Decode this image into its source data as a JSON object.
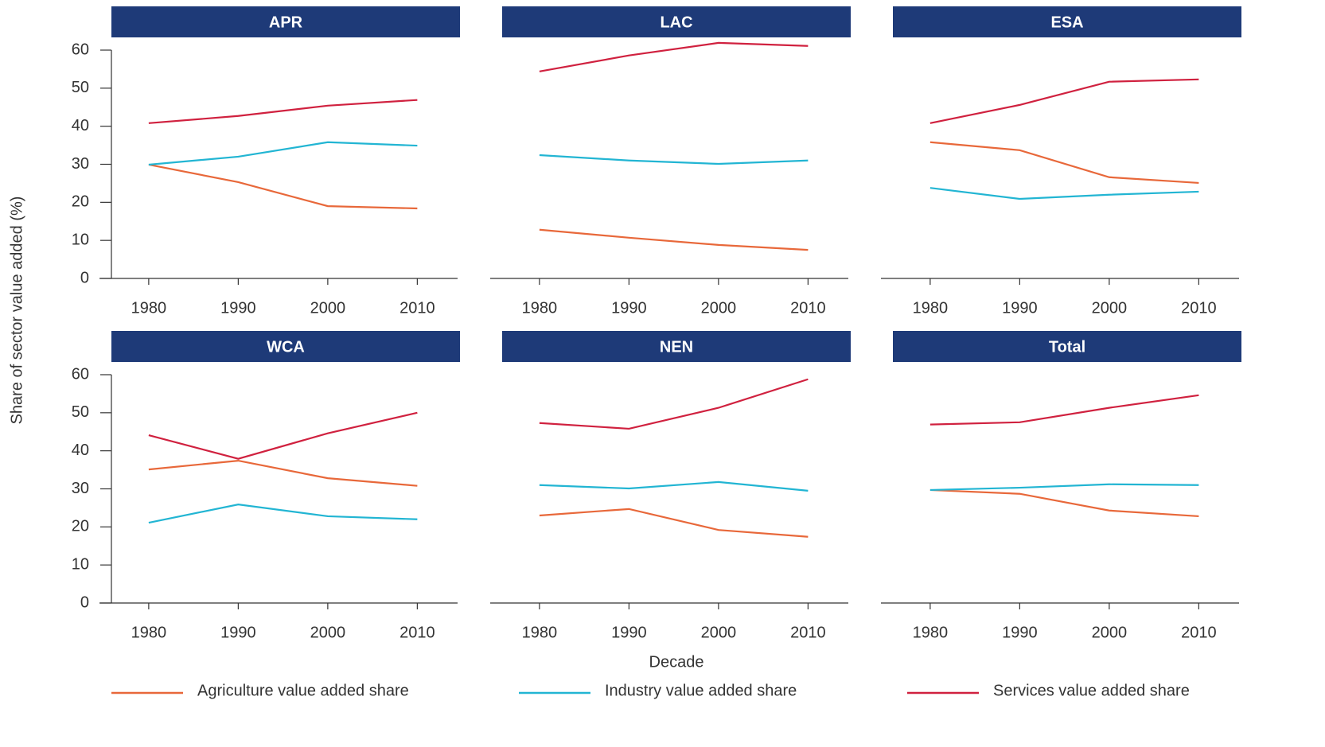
{
  "y_label": "Share of sector value added (%)",
  "x_label": "Decade",
  "chart_data": [
    {
      "type": "line",
      "title": "APR",
      "x": [
        1980,
        1990,
        2000,
        2010
      ],
      "xlim": [
        1974.5,
        2014.5
      ],
      "xticks": [
        1980,
        1990,
        2000,
        2010
      ],
      "ylim": [
        0,
        64
      ],
      "yticks": [
        0,
        10,
        20,
        30,
        40,
        50,
        60
      ],
      "series": [
        {
          "name": "Agriculture value added share",
          "color": "#e8683a",
          "values": [
            29.9,
            25.3,
            19.0,
            18.4
          ]
        },
        {
          "name": "Industry value added share",
          "color": "#22b5d3",
          "values": [
            29.9,
            32.0,
            35.8,
            34.9
          ]
        },
        {
          "name": "Services value added share",
          "color": "#d0213f",
          "values": [
            40.8,
            42.7,
            45.4,
            46.9
          ]
        }
      ]
    },
    {
      "type": "line",
      "title": "LAC",
      "x": [
        1980,
        1990,
        2000,
        2010
      ],
      "xlim": [
        1974.5,
        2014.5
      ],
      "xticks": [
        1980,
        1990,
        2000,
        2010
      ],
      "ylim": [
        0,
        64
      ],
      "series": [
        {
          "name": "Agriculture value added share",
          "color": "#e8683a",
          "values": [
            12.8,
            10.7,
            8.8,
            7.5
          ]
        },
        {
          "name": "Industry value added share",
          "color": "#22b5d3",
          "values": [
            32.4,
            31.0,
            30.1,
            31.0
          ]
        },
        {
          "name": "Services value added share",
          "color": "#d0213f",
          "values": [
            54.4,
            58.6,
            61.9,
            61.1
          ]
        }
      ]
    },
    {
      "type": "line",
      "title": "ESA",
      "x": [
        1980,
        1990,
        2000,
        2010
      ],
      "xlim": [
        1974.5,
        2014.5
      ],
      "xticks": [
        1980,
        1990,
        2000,
        2010
      ],
      "ylim": [
        0,
        64
      ],
      "series": [
        {
          "name": "Agriculture value added share",
          "color": "#e8683a",
          "values": [
            35.8,
            33.7,
            26.6,
            25.1
          ]
        },
        {
          "name": "Industry value added share",
          "color": "#22b5d3",
          "values": [
            23.8,
            20.9,
            22.0,
            22.8
          ]
        },
        {
          "name": "Services value added share",
          "color": "#d0213f",
          "values": [
            40.8,
            45.6,
            51.7,
            52.3
          ]
        }
      ]
    },
    {
      "type": "line",
      "title": "WCA",
      "x": [
        1980,
        1990,
        2000,
        2010
      ],
      "xlim": [
        1974.5,
        2014.5
      ],
      "xticks": [
        1980,
        1990,
        2000,
        2010
      ],
      "ylim": [
        0,
        64
      ],
      "yticks": [
        0,
        10,
        20,
        30,
        40,
        50,
        60
      ],
      "series": [
        {
          "name": "Agriculture value added share",
          "color": "#e8683a",
          "values": [
            35.1,
            37.4,
            32.8,
            30.8
          ]
        },
        {
          "name": "Industry value added share",
          "color": "#22b5d3",
          "values": [
            21.1,
            25.9,
            22.8,
            22.0
          ]
        },
        {
          "name": "Services value added share",
          "color": "#d0213f",
          "values": [
            44.1,
            37.9,
            44.6,
            50.0
          ]
        }
      ]
    },
    {
      "type": "line",
      "title": "NEN",
      "x": [
        1980,
        1990,
        2000,
        2010
      ],
      "xlim": [
        1974.5,
        2014.5
      ],
      "xticks": [
        1980,
        1990,
        2000,
        2010
      ],
      "ylim": [
        0,
        64
      ],
      "series": [
        {
          "name": "Agriculture value added share",
          "color": "#e8683a",
          "values": [
            23.0,
            24.7,
            19.2,
            17.4
          ]
        },
        {
          "name": "Industry value added share",
          "color": "#22b5d3",
          "values": [
            31.0,
            30.1,
            31.8,
            29.5
          ]
        },
        {
          "name": "Services value added share",
          "color": "#d0213f",
          "values": [
            47.3,
            45.8,
            51.3,
            58.8
          ]
        }
      ]
    },
    {
      "type": "line",
      "title": "Total",
      "x": [
        1980,
        1990,
        2000,
        2010
      ],
      "xlim": [
        1974.5,
        2014.5
      ],
      "xticks": [
        1980,
        1990,
        2000,
        2010
      ],
      "ylim": [
        0,
        64
      ],
      "series": [
        {
          "name": "Agriculture value added share",
          "color": "#e8683a",
          "values": [
            29.7,
            28.7,
            24.3,
            22.8
          ]
        },
        {
          "name": "Industry value added share",
          "color": "#22b5d3",
          "values": [
            29.7,
            30.3,
            31.2,
            31.0
          ]
        },
        {
          "name": "Services value added share",
          "color": "#d0213f",
          "values": [
            46.9,
            47.5,
            51.3,
            54.6
          ]
        }
      ]
    }
  ]
}
